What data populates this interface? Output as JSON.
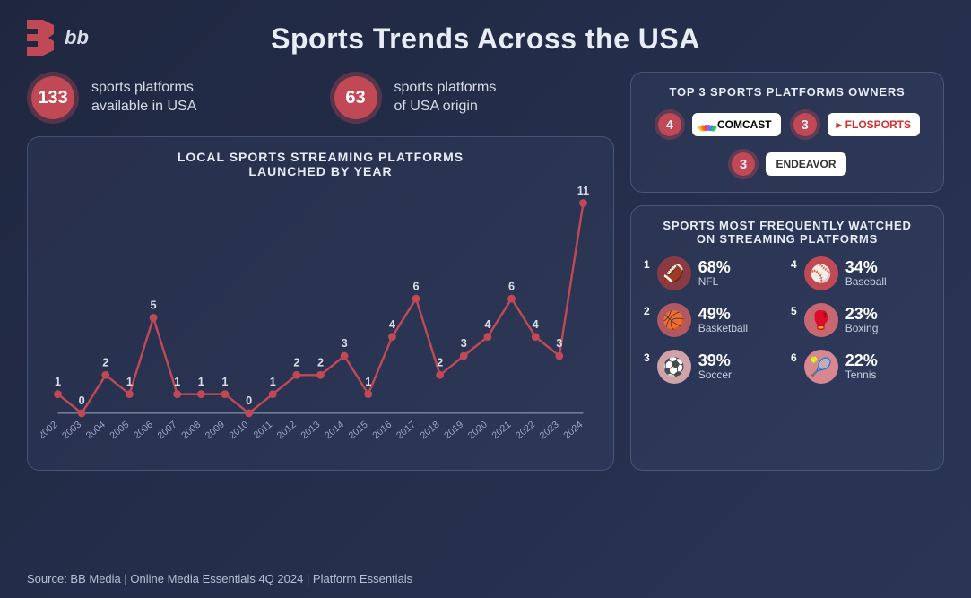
{
  "brand": {
    "text": "bb"
  },
  "title": "Sports Trends Across the USA",
  "stats": [
    {
      "value": "133",
      "label_l1": "sports platforms",
      "label_l2": "available in USA"
    },
    {
      "value": "63",
      "label_l1": "sports platforms",
      "label_l2": "of USA origin"
    }
  ],
  "chart": {
    "title_l1": "LOCAL SPORTS STREAMING PLATFORMS",
    "title_l2": "LAUNCHED BY YEAR",
    "years": [
      "2002",
      "2003",
      "2004",
      "2005",
      "2006",
      "2007",
      "2008",
      "2009",
      "2010",
      "2011",
      "2012",
      "2013",
      "2014",
      "2015",
      "2016",
      "2017",
      "2018",
      "2019",
      "2020",
      "2021",
      "2022",
      "2023",
      "2024"
    ],
    "values": [
      1,
      0,
      2,
      1,
      5,
      1,
      1,
      1,
      0,
      1,
      2,
      2,
      3,
      1,
      4,
      6,
      2,
      3,
      4,
      6,
      4,
      3,
      11
    ],
    "line_color": "#c14956",
    "point_color": "#c14956",
    "axis_color": "#9aa6c7",
    "label_color": "#d8dce8",
    "label_fontsize": 11,
    "value_label_fontsize": 13,
    "ylim": [
      0,
      11
    ]
  },
  "owners": {
    "title": "TOP 3 SPORTS PLATFORMS OWNERS",
    "items": [
      {
        "count": "4",
        "name": "COMCAST",
        "has_peacock": true,
        "text_color": "#000000"
      },
      {
        "count": "3",
        "name": "FLOSPORTS",
        "has_peacock": false,
        "text_color": "#d03030",
        "prefix": "▸"
      },
      {
        "count": "3",
        "name": "ENDEAVOR",
        "has_peacock": false,
        "text_color": "#333333"
      }
    ]
  },
  "sports": {
    "title_l1": "SPORTS MOST FREQUENTLY WATCHED",
    "title_l2": "ON STREAMING PLATFORMS",
    "items": [
      {
        "rank": "1",
        "pct": "68%",
        "name": "NFL",
        "icon": "🏈",
        "bg": "#8a3a44"
      },
      {
        "rank": "4",
        "pct": "34%",
        "name": "Baseball",
        "icon": "⚾",
        "bg": "#c14956"
      },
      {
        "rank": "2",
        "pct": "49%",
        "name": "Basketball",
        "icon": "🏀",
        "bg": "#b25862"
      },
      {
        "rank": "5",
        "pct": "23%",
        "name": "Boxing",
        "icon": "🥊",
        "bg": "#c66772"
      },
      {
        "rank": "3",
        "pct": "39%",
        "name": "Soccer",
        "icon": "⚽",
        "bg": "#d0a3a8"
      },
      {
        "rank": "6",
        "pct": "22%",
        "name": "Tennis",
        "icon": "🎾",
        "bg": "#d68790"
      }
    ]
  },
  "source": "Source: BB Media | Online Media Essentials 4Q 2024 | Platform Essentials",
  "colors": {
    "accent": "#c14956",
    "background_from": "#1f2740",
    "background_to": "#2a3555"
  }
}
